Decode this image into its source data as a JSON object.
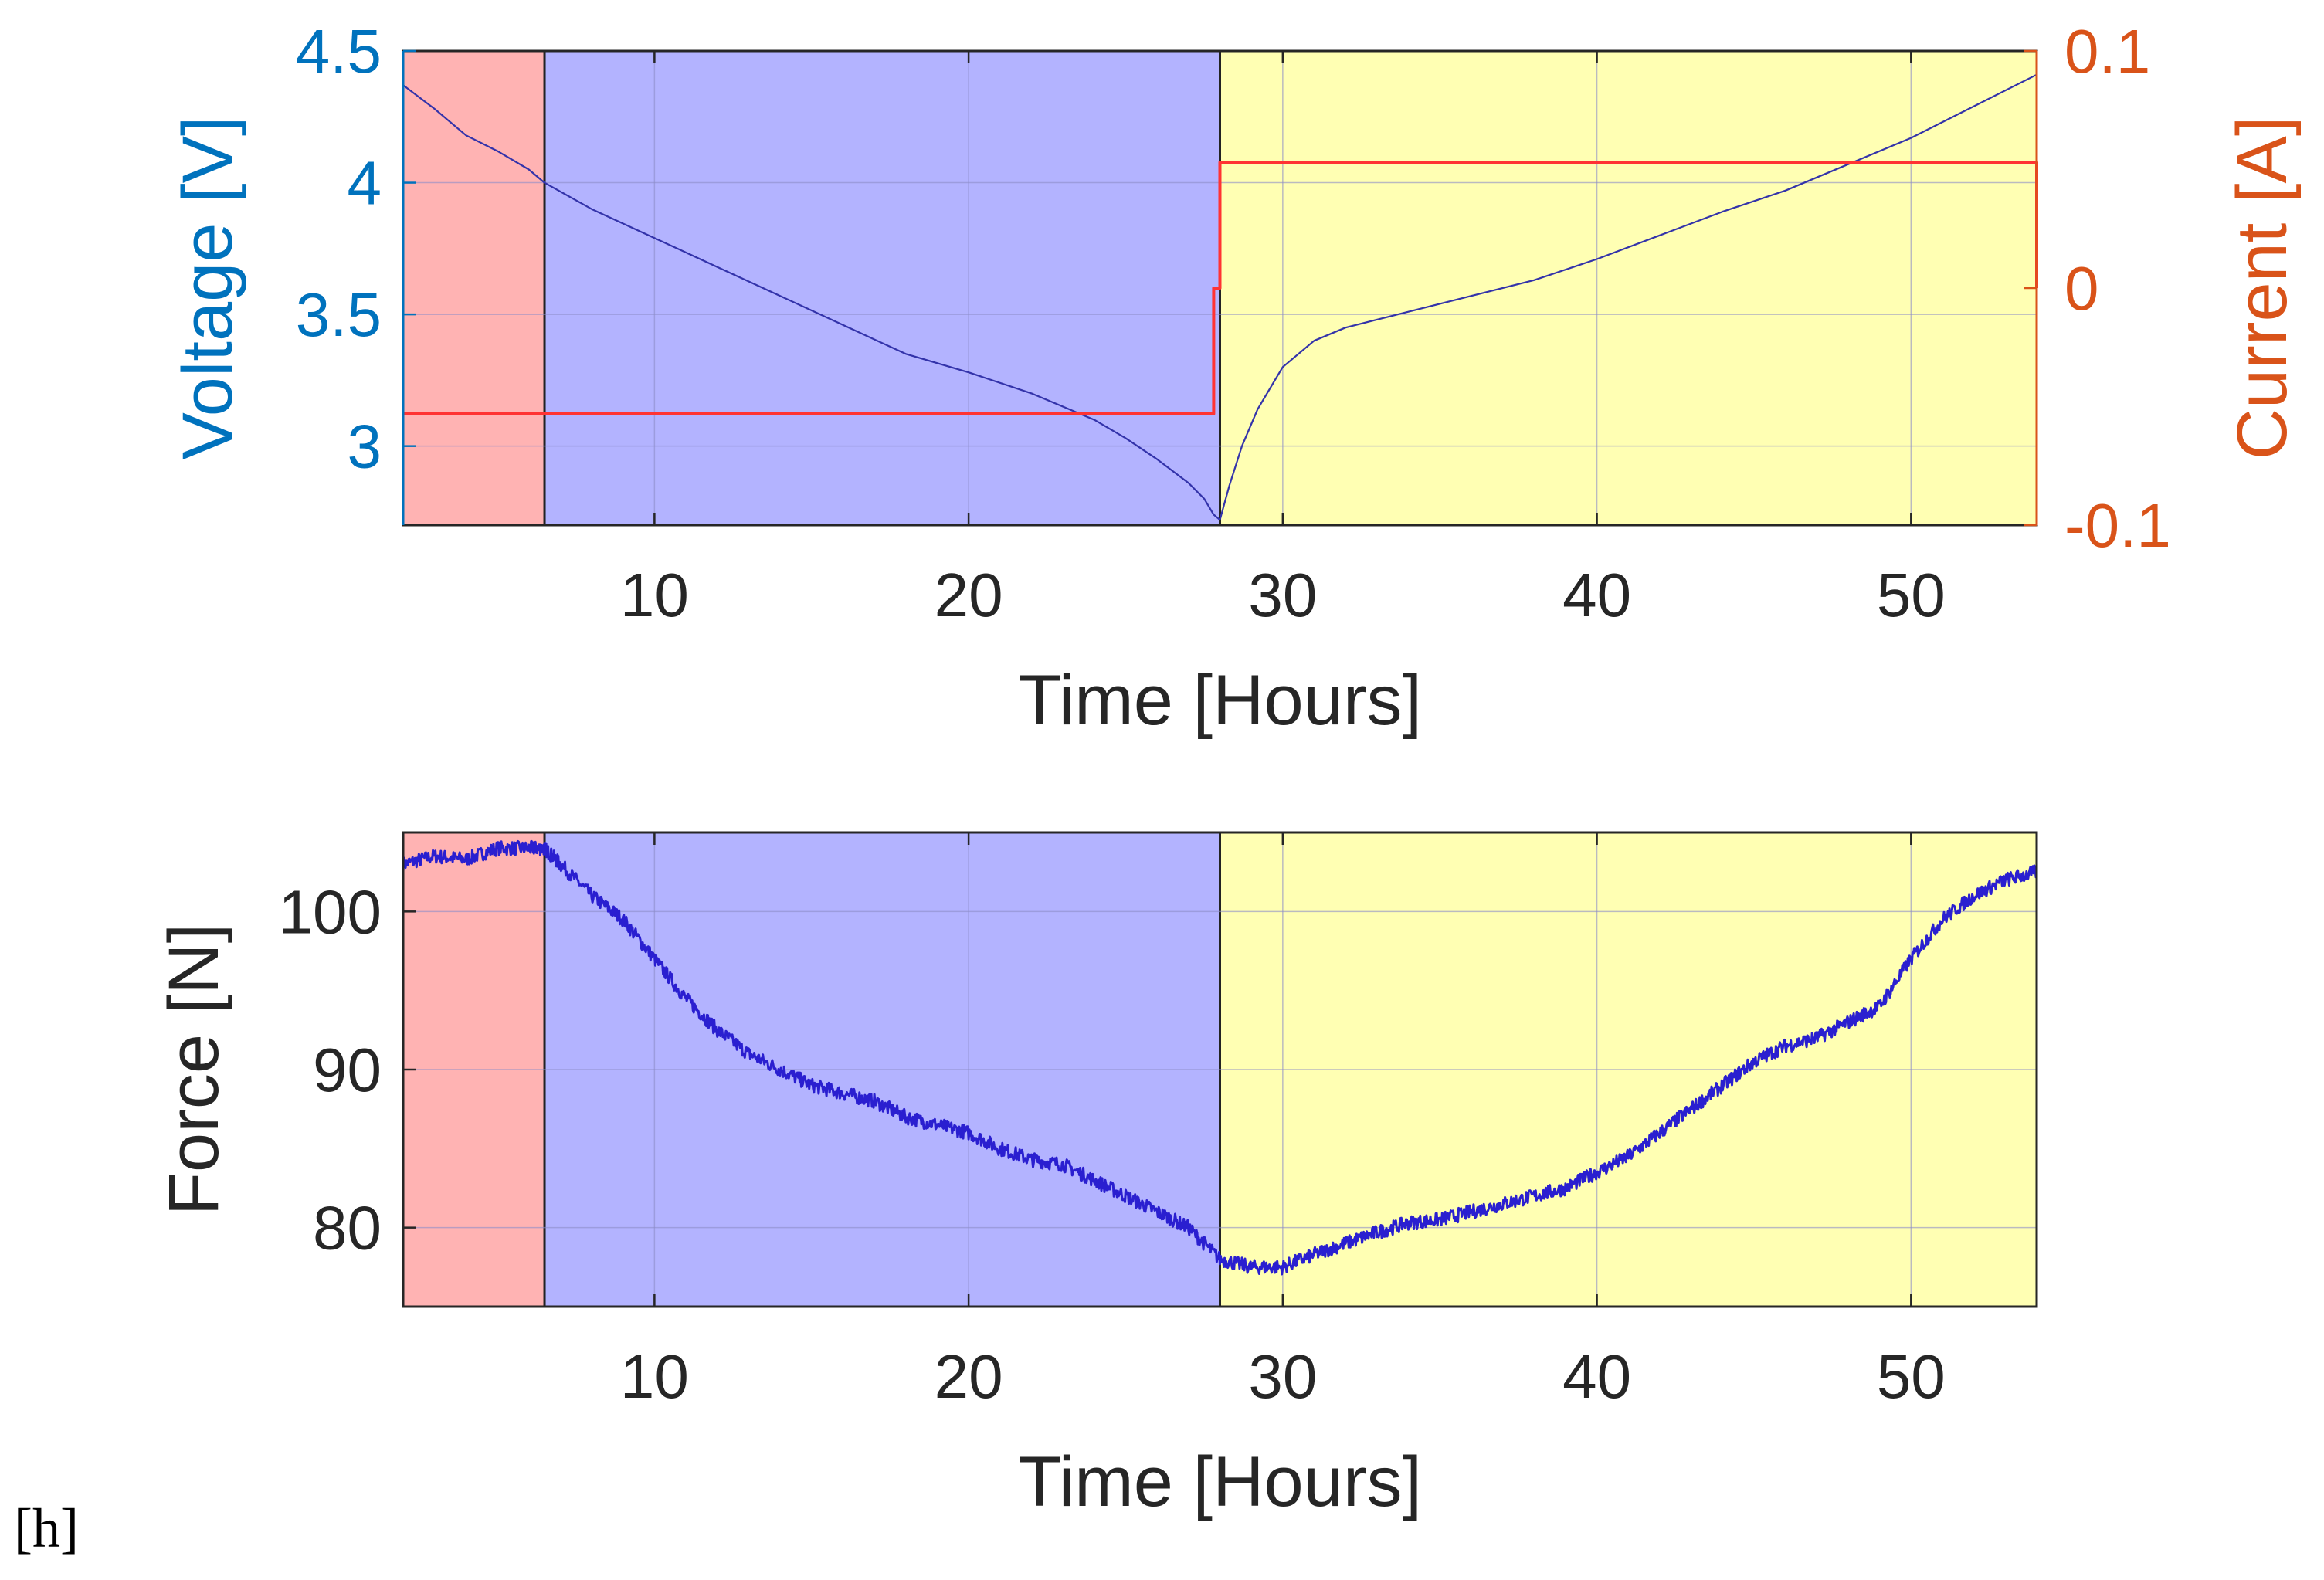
{
  "caption": "[h]",
  "colors": {
    "voltage_axis": "#0072BD",
    "current_axis": "#D95319",
    "voltage_line": "#3333aa",
    "current_line": "#ff3333",
    "force_line": "#2a1fd0",
    "region_rest": "#ffb3b3",
    "region_discharge": "#b3b3ff",
    "region_charge": "#ffffb3",
    "grid": "#8c8cc8"
  },
  "chart_data": [
    {
      "type": "line",
      "xlabel": "Time [Hours]",
      "ylabel": "Voltage [V]",
      "ylabel_right": "Current [A]",
      "xlim": [
        2,
        54
      ],
      "ylim": [
        2.7,
        4.5
      ],
      "ylim_right": [
        -0.1,
        0.1
      ],
      "xticks": [
        10,
        20,
        30,
        40,
        50
      ],
      "xtick_labels": [
        "10",
        "20",
        "30",
        "40",
        "50"
      ],
      "yticks": [
        3,
        3.5,
        4,
        4.5
      ],
      "ytick_labels": [
        "3",
        "3.5",
        "4",
        "4.5"
      ],
      "yticks_right": [
        -0.1,
        0,
        0.1
      ],
      "ytick_labels_right": [
        "-0.1",
        "0",
        "0.1"
      ],
      "grid": true,
      "regions": [
        {
          "x0": 2,
          "x1": 6.5,
          "color": "#ffb3b3"
        },
        {
          "x0": 6.5,
          "x1": 28,
          "color": "#b3b3ff"
        },
        {
          "x0": 28,
          "x1": 54,
          "color": "#ffffb3"
        }
      ],
      "series": [
        {
          "axis": "left",
          "color": "#3333aa",
          "x": [
            2,
            3,
            4,
            5,
            6,
            6.5,
            8,
            10,
            12,
            14,
            16,
            18,
            20,
            22,
            24,
            25,
            26,
            27,
            27.5,
            27.8,
            28,
            28.3,
            28.7,
            29.2,
            30,
            31,
            32,
            34,
            36,
            38,
            40,
            42,
            44,
            46,
            48,
            50,
            52,
            54
          ],
          "y": [
            4.37,
            4.28,
            4.18,
            4.12,
            4.05,
            4.0,
            3.9,
            3.79,
            3.68,
            3.57,
            3.46,
            3.35,
            3.28,
            3.2,
            3.1,
            3.03,
            2.95,
            2.86,
            2.8,
            2.74,
            2.72,
            2.85,
            3.0,
            3.14,
            3.3,
            3.4,
            3.45,
            3.51,
            3.57,
            3.63,
            3.71,
            3.8,
            3.89,
            3.97,
            4.07,
            4.17,
            4.29,
            4.41
          ]
        },
        {
          "axis": "right",
          "color": "#ff3333",
          "x": [
            2,
            27.8,
            27.8,
            28.0,
            28.0,
            54,
            54
          ],
          "y": [
            -0.053,
            -0.053,
            0.0,
            0.0,
            0.053,
            0.053,
            0.0
          ]
        }
      ]
    },
    {
      "type": "line",
      "xlabel": "Time [Hours]",
      "ylabel": "Force [N]",
      "xlim": [
        2,
        54
      ],
      "ylim": [
        75,
        105
      ],
      "xticks": [
        10,
        20,
        30,
        40,
        50
      ],
      "xtick_labels": [
        "10",
        "20",
        "30",
        "40",
        "50"
      ],
      "yticks": [
        80,
        90,
        100
      ],
      "ytick_labels": [
        "80",
        "90",
        "100"
      ],
      "grid": true,
      "regions": [
        {
          "x0": 2,
          "x1": 6.5,
          "color": "#ffb3b3"
        },
        {
          "x0": 6.5,
          "x1": 28,
          "color": "#b3b3ff"
        },
        {
          "x0": 28,
          "x1": 54,
          "color": "#ffffb3"
        }
      ],
      "series": [
        {
          "axis": "left",
          "color": "#2a1fd0",
          "x": [
            2,
            3,
            4,
            5,
            6,
            6.5,
            7,
            8,
            9,
            10,
            11,
            12,
            13,
            14,
            15,
            16,
            17,
            18,
            19,
            20,
            21,
            22,
            23,
            24,
            25,
            26,
            27,
            28,
            29,
            30,
            31,
            32,
            33,
            34,
            35,
            36,
            37,
            38,
            39,
            40,
            41,
            42,
            43,
            44,
            45,
            46,
            47,
            48,
            49,
            50,
            51,
            52,
            53,
            54
          ],
          "y": [
            103,
            103.5,
            103.3,
            104,
            104,
            104,
            103,
            101,
            99.5,
            97,
            94.5,
            92.5,
            91,
            90,
            89,
            88.5,
            88,
            87,
            86.5,
            86,
            85,
            84.3,
            84,
            83,
            82,
            81,
            80,
            78,
            77.5,
            77.5,
            78.3,
            79,
            79.7,
            80.3,
            80.5,
            81,
            81.5,
            82,
            82.5,
            83.5,
            84.5,
            86,
            87.5,
            89,
            90.5,
            91.5,
            92,
            93,
            94,
            97,
            99.5,
            101,
            102,
            102.5
          ],
          "noise": 0.45
        }
      ]
    }
  ]
}
